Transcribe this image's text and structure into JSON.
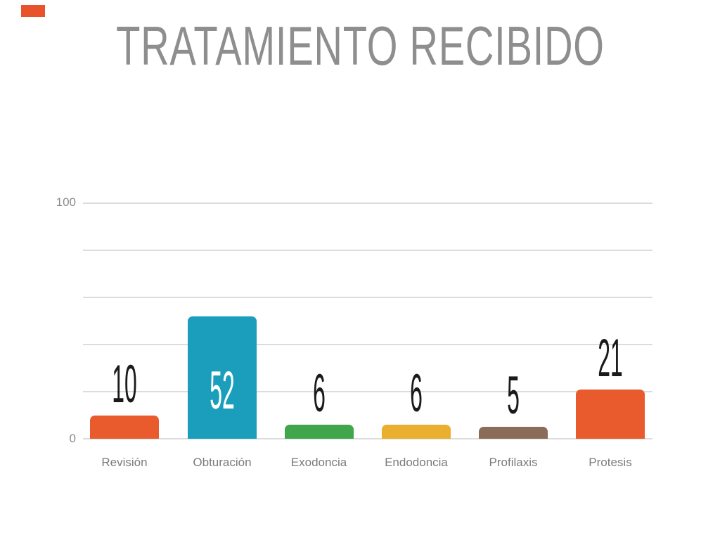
{
  "slide": {
    "title": "TRATAMIENTO RECIBIDO",
    "title_color": "#8E8E8E",
    "background": "#FFFFFF",
    "corner_tag_color": "#E8532B"
  },
  "chart_data": {
    "type": "bar",
    "title": "TRATAMIENTO RECIBIDO",
    "categories": [
      "Revisión",
      "Obturación",
      "Exodoncia",
      "Endodoncia",
      "Profilaxis",
      "Protesis"
    ],
    "values": [
      10,
      52,
      6,
      6,
      5,
      21
    ],
    "bar_colors": [
      "#E95B2D",
      "#1A9EBC",
      "#41A64B",
      "#EAAF2E",
      "#8A6C58",
      "#E95B2D"
    ],
    "value_label_colors": [
      "#1A1A1A",
      "#FFFFFF",
      "#1A1A1A",
      "#1A1A1A",
      "#1A1A1A",
      "#1A1A1A"
    ],
    "value_label_inside": [
      false,
      true,
      false,
      false,
      false,
      false
    ],
    "xlabel": "",
    "ylabel": "",
    "ylim": [
      0,
      100
    ],
    "yticks_labeled": [
      "100",
      "0"
    ],
    "gridline_count": 6,
    "grid": "on",
    "legend": "none",
    "gridline_color": "#DCDCDC",
    "axis_tick_color": "#8A8A8A",
    "category_label_color": "#7B7B7B"
  }
}
